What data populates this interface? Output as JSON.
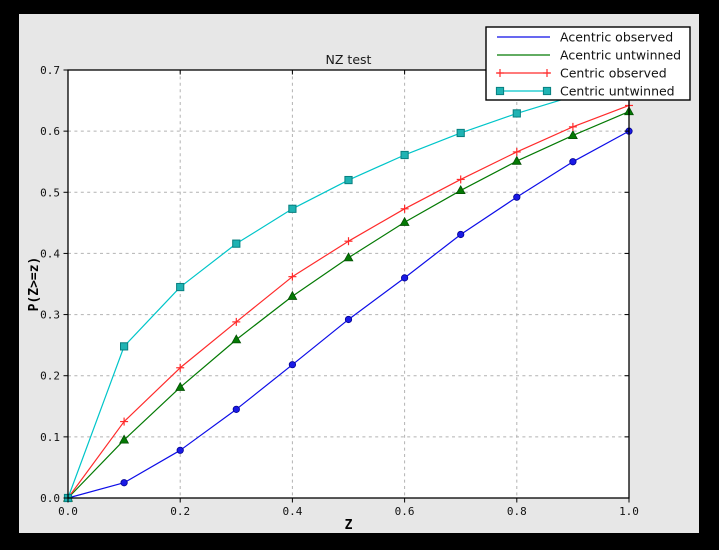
{
  "figure": {
    "background": "#000000",
    "figure_color": "#e7e7e7",
    "plot_background": "#ffffff",
    "grid_color": "#b2b2b2",
    "frame_color": "#000000",
    "legend_background": "#ffffff",
    "legend_border": "#000000"
  },
  "chart_data": {
    "type": "line",
    "title": "NZ test",
    "xlabel": "Z",
    "ylabel": "P(Z>=z)",
    "xlim": [
      0.0,
      1.0
    ],
    "ylim": [
      0.0,
      0.7
    ],
    "xticks": [
      0.0,
      0.2,
      0.4,
      0.6,
      0.8,
      1.0
    ],
    "yticks": [
      0.0,
      0.1,
      0.2,
      0.3,
      0.4,
      0.5,
      0.6,
      0.7
    ],
    "xtick_labels": [
      "0.0",
      "0.2",
      "0.4",
      "0.6",
      "0.8",
      "1.0"
    ],
    "ytick_labels": [
      "0.0",
      "0.1",
      "0.2",
      "0.3",
      "0.4",
      "0.5",
      "0.6",
      "0.7"
    ],
    "grid": true,
    "legend_position": "upper right",
    "x": [
      0.0,
      0.1,
      0.2,
      0.3,
      0.4,
      0.5,
      0.6,
      0.7,
      0.8,
      0.9,
      1.0
    ],
    "series": [
      {
        "name": "Acentric observed",
        "color": "#0d0de8",
        "marker": "circle",
        "marker_fill": "#1a1ae6",
        "marker_edge": "#000090",
        "legend_marker": false,
        "values": [
          0.0,
          0.025,
          0.078,
          0.145,
          0.218,
          0.292,
          0.36,
          0.431,
          0.492,
          0.55,
          0.6
        ]
      },
      {
        "name": "Acentric untwinned",
        "color": "#047a04",
        "marker": "triangle",
        "marker_fill": "#047a04",
        "marker_edge": "#034f03",
        "legend_marker": false,
        "values": [
          0.0,
          0.095,
          0.181,
          0.259,
          0.33,
          0.393,
          0.451,
          0.503,
          0.551,
          0.593,
          0.632
        ]
      },
      {
        "name": "Centric observed",
        "color": "#ff2b2b",
        "marker": "plus",
        "marker_fill": "#ff2b2b",
        "marker_edge": "#ff2b2b",
        "legend_marker": true,
        "values": [
          0.0,
          0.125,
          0.213,
          0.288,
          0.362,
          0.42,
          0.473,
          0.521,
          0.566,
          0.607,
          0.642
        ]
      },
      {
        "name": "Centric untwinned",
        "color": "#00c5c9",
        "marker": "square",
        "marker_fill": "#1fb3b3",
        "marker_edge": "#077f7f",
        "legend_marker": true,
        "values": [
          0.0,
          0.248,
          0.345,
          0.416,
          0.473,
          0.52,
          0.561,
          0.597,
          0.629,
          0.657,
          0.683
        ]
      }
    ]
  }
}
